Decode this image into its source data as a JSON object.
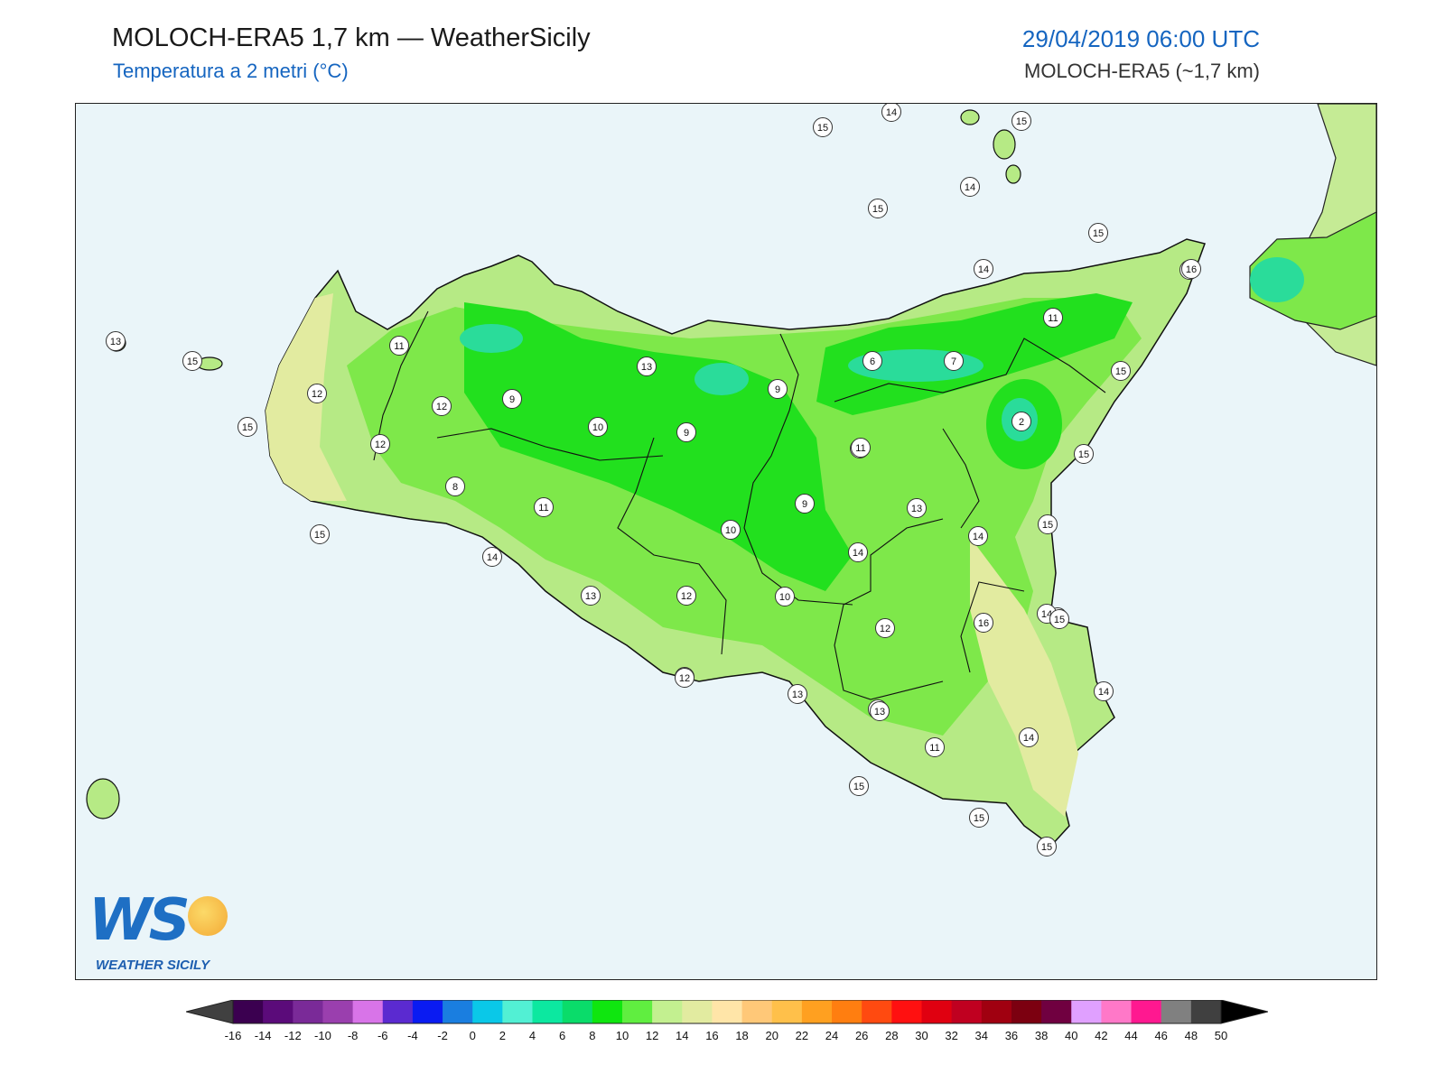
{
  "header": {
    "title": "MOLOCH-ERA5 1,7 km — WeatherSicily",
    "subtitle": "Temperatura a 2 metri (°C)",
    "datetime": "29/04/2019 06:00 UTC",
    "model": "MOLOCH-ERA5 (~1,7 km)"
  },
  "logo": {
    "mark": "WS",
    "text": "WEATHER SICILY"
  },
  "map": {
    "sea_color": "#eaf5f9",
    "station_labels": [
      "15",
      "14",
      "15",
      "14",
      "15",
      "13",
      "15",
      "15",
      "14",
      "14",
      "11",
      "12",
      "15",
      "12",
      "12",
      "9",
      "8",
      "13",
      "10",
      "9",
      "11",
      "9",
      "11",
      "10",
      "6",
      "7",
      "11",
      "2",
      "15",
      "16",
      "15",
      "14",
      "15",
      "11",
      "13",
      "9",
      "14",
      "14",
      "15",
      "13",
      "12",
      "10",
      "12",
      "16",
      "14",
      "15",
      "13",
      "14",
      "13",
      "11",
      "14",
      "15",
      "15",
      "15",
      "14",
      "15",
      "13",
      "12"
    ]
  },
  "colorbar": {
    "ticks": [
      "-16",
      "-14",
      "-12",
      "-10",
      "-8",
      "-6",
      "-4",
      "-2",
      "0",
      "2",
      "4",
      "6",
      "8",
      "10",
      "12",
      "14",
      "16",
      "18",
      "20",
      "22",
      "24",
      "26",
      "28",
      "30",
      "32",
      "34",
      "36",
      "38",
      "40",
      "42",
      "44",
      "46",
      "48",
      "50"
    ],
    "colors": [
      "#3b0050",
      "#5b0b7a",
      "#7a2a98",
      "#9a3fae",
      "#d874e8",
      "#5b2ad0",
      "#0a1bf2",
      "#1a7ee0",
      "#0ac8e8",
      "#52f0d4",
      "#0ce8a0",
      "#0adc6a",
      "#0fe60f",
      "#60ee40",
      "#c3f090",
      "#e2eba0",
      "#ffe5a8",
      "#ffc878",
      "#ffc04a",
      "#ffa020",
      "#ff7e10",
      "#ff4a10",
      "#ff1010",
      "#e00010",
      "#c00020",
      "#a00010",
      "#7c0010",
      "#700040",
      "#e0a0ff",
      "#ff78c8",
      "#ff1890",
      "#808080",
      "#404040"
    ],
    "under_color": "#404040",
    "over_color": "#000000"
  }
}
